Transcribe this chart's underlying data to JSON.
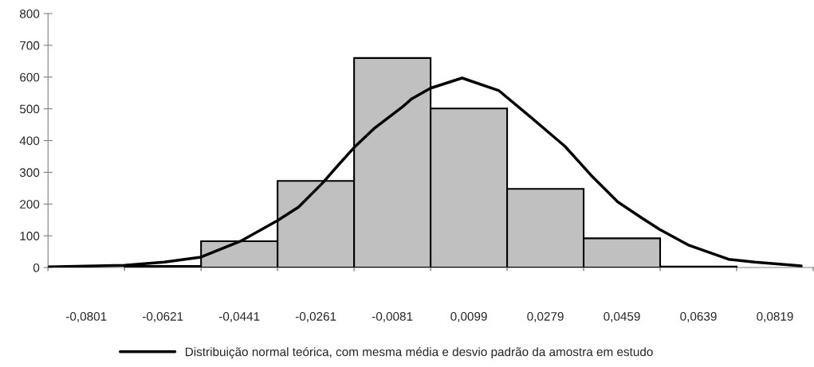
{
  "chart_data": {
    "type": "histogram",
    "bins": [
      -0.0891,
      -0.0711,
      -0.0531,
      -0.0351,
      -0.0171,
      0.0009,
      0.0189,
      0.0369,
      0.0549,
      0.0729,
      0.0909
    ],
    "values": [
      0,
      5,
      83,
      273,
      660,
      501,
      248,
      92,
      3,
      0
    ],
    "color": "#c0c0c0",
    "series": [
      {
        "type": "line",
        "name": "Distribuição normal teórica, com mesma média e desvio padrão da amostra em estudo",
        "color": "#000000",
        "x": [
          -0.0891,
          -0.0711,
          -0.0618,
          -0.0531,
          -0.0438,
          -0.0351,
          -0.0302,
          -0.0246,
          -0.0208,
          -0.0171,
          -0.0122,
          -0.006,
          -0.0035,
          0.0009,
          0.0083,
          0.017,
          0.0245,
          0.0325,
          0.0387,
          0.0449,
          0.0505,
          0.0548,
          0.0617,
          0.071,
          0.0772,
          0.0881
        ],
        "values": [
          2,
          7,
          17,
          33,
          83,
          148,
          190,
          265,
          323,
          378,
          440,
          503,
          532,
          565,
          597,
          557,
          473,
          382,
          290,
          207,
          157,
          120,
          70,
          26,
          17,
          5
        ]
      }
    ],
    "xlim": [
      -0.0891,
      0.0909
    ],
    "xticks": [
      {
        "value": -0.0801,
        "label": "-0,0801"
      },
      {
        "value": -0.0621,
        "label": "-0,0621"
      },
      {
        "value": -0.0441,
        "label": "-0,0441"
      },
      {
        "value": -0.0261,
        "label": "-0,0261"
      },
      {
        "value": -0.0081,
        "label": "-0,0081"
      },
      {
        "value": 0.0099,
        "label": "0,0099"
      },
      {
        "value": 0.0279,
        "label": "0,0279"
      },
      {
        "value": 0.0459,
        "label": "0,0459"
      },
      {
        "value": 0.0639,
        "label": "0,0639"
      },
      {
        "value": 0.0819,
        "label": "0,0819"
      }
    ],
    "ylim": [
      0,
      800
    ],
    "yticks": [
      0,
      100,
      200,
      300,
      400,
      500,
      600,
      700,
      800
    ],
    "grid": false,
    "legend": "bottom"
  }
}
